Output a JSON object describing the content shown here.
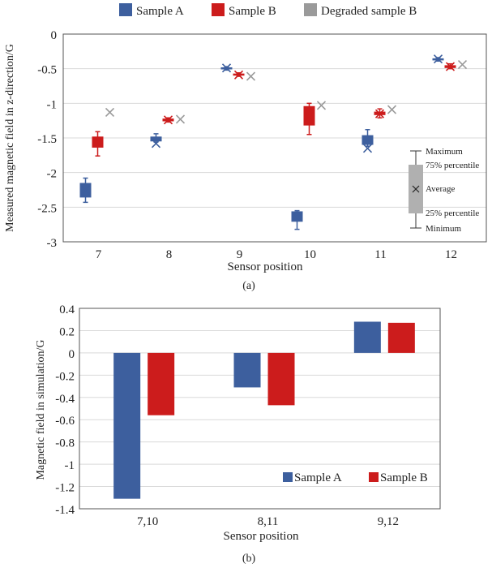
{
  "colors": {
    "sample_a": "#3d5f9e",
    "sample_b": "#cc1c1c",
    "degraded_b": "#9a9a9a"
  },
  "chart_data": [
    {
      "type": "box",
      "panel_label": "(a)",
      "xlabel": "Sensor position",
      "ylabel": "Measured magnetic field in z-direction/G",
      "ylim": [
        -3,
        0
      ],
      "yticks": [
        "0",
        "-0.5",
        "-1",
        "-1.5",
        "-2",
        "-2.5",
        "-3"
      ],
      "categories": [
        "7",
        "8",
        "9",
        "10",
        "11",
        "12"
      ],
      "grid": true,
      "legend_position": "top",
      "series": [
        {
          "name": "Sample A",
          "boxes": [
            {
              "min": -2.43,
              "q1": -2.36,
              "q3": -2.15,
              "max": -2.08,
              "mean": -2.26
            },
            {
              "min": -1.56,
              "q1": -1.55,
              "q3": -1.48,
              "max": -1.44,
              "mean": -1.58
            },
            {
              "min": -0.52,
              "q1": -0.51,
              "q3": -0.48,
              "max": -0.47,
              "mean": -0.49
            },
            {
              "min": -2.82,
              "q1": -2.71,
              "q3": -2.56,
              "max": -2.55,
              "mean": -2.64
            },
            {
              "min": -1.62,
              "q1": -1.6,
              "q3": -1.46,
              "max": -1.38,
              "mean": -1.65
            },
            {
              "min": -0.39,
              "q1": -0.38,
              "q3": -0.35,
              "max": -0.34,
              "mean": -0.36
            }
          ]
        },
        {
          "name": "Sample B",
          "boxes": [
            {
              "min": -1.76,
              "q1": -1.64,
              "q3": -1.48,
              "max": -1.41,
              "mean": -1.56
            },
            {
              "min": -1.27,
              "q1": -1.26,
              "q3": -1.22,
              "max": -1.21,
              "mean": -1.24
            },
            {
              "min": -0.61,
              "q1": -0.6,
              "q3": -0.57,
              "max": -0.56,
              "mean": -0.59
            },
            {
              "min": -1.45,
              "q1": -1.32,
              "q3": -1.04,
              "max": -1.0,
              "mean": -1.19
            },
            {
              "min": -1.21,
              "q1": -1.17,
              "q3": -1.12,
              "max": -1.08,
              "mean": -1.15
            },
            {
              "min": -0.5,
              "q1": -0.49,
              "q3": -0.45,
              "max": -0.43,
              "mean": -0.47
            }
          ]
        },
        {
          "name": "Degraded sample B",
          "boxes": [
            {
              "mean": -1.13
            },
            {
              "mean": -1.23
            },
            {
              "mean": -0.61
            },
            {
              "mean": -1.03
            },
            {
              "mean": -1.09
            },
            {
              "mean": -0.44
            }
          ]
        }
      ],
      "key": {
        "maximum": "Maximum",
        "q3": "75% percentile",
        "average": "Average",
        "q1": "25% percentile",
        "minimum": "Minimum"
      }
    },
    {
      "type": "bar",
      "panel_label": "(b)",
      "xlabel": "Sensor position",
      "ylabel": "Magnetic field in simulation/G",
      "ylim": [
        -1.4,
        0.4
      ],
      "yticks": [
        "0.4",
        "0.2",
        "0",
        "-0.2",
        "-0.4",
        "-0.6",
        "-0.8",
        "-1",
        "-1.2",
        "-1.4"
      ],
      "categories": [
        "7,10",
        "8,11",
        "9,12"
      ],
      "grid": true,
      "legend_position": "bottom-right",
      "series": [
        {
          "name": "Sample A",
          "values": [
            -1.31,
            -0.31,
            0.28
          ]
        },
        {
          "name": "Sample B",
          "values": [
            -0.56,
            -0.47,
            0.27
          ]
        }
      ]
    }
  ]
}
